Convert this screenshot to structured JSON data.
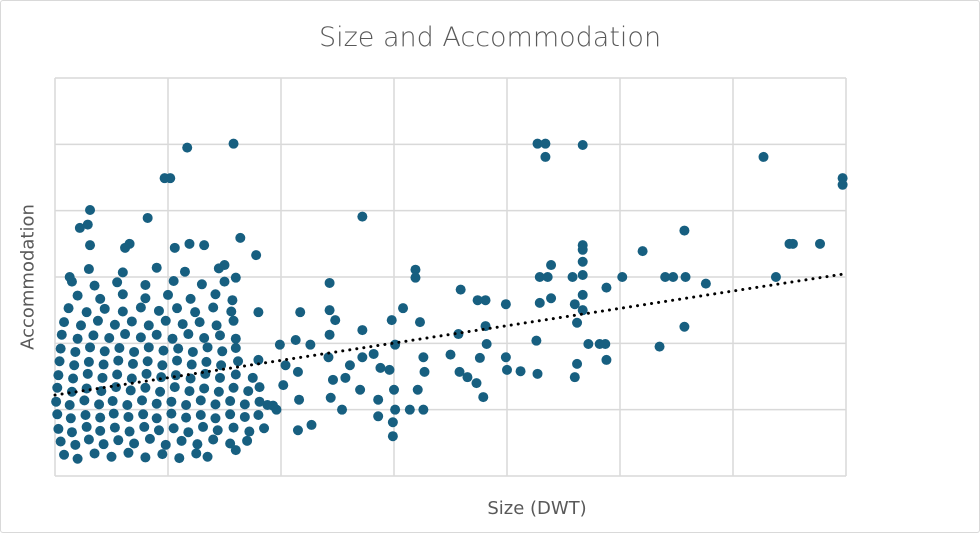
{
  "chart_data": {
    "type": "scatter",
    "title": "Size and Accommodation",
    "xlabel": "Size (DWT)",
    "ylabel": "Accommodation",
    "xlim": [
      0,
      80
    ],
    "ylim": [
      0,
      60
    ],
    "x_gridlines": 10,
    "y_gridlines": 10,
    "grid": true,
    "tick_labels_shown": false,
    "legend": "none",
    "marker_color": "#175f80",
    "gridline_color": "#d9d9d9",
    "trendline": {
      "type": "linear",
      "style": "dotted",
      "color": "#000000",
      "x": [
        0,
        70
      ],
      "y": [
        12.2,
        30.5
      ]
    },
    "points": [
      [
        11.7,
        49.5
      ],
      [
        15.8,
        50.1
      ],
      [
        9.7,
        44.9
      ],
      [
        10.2,
        44.9
      ],
      [
        27.2,
        39.1
      ],
      [
        42.7,
        50.1
      ],
      [
        43.4,
        50.1
      ],
      [
        43.4,
        48.1
      ],
      [
        46.7,
        49.9
      ],
      [
        62.7,
        48.1
      ],
      [
        69.7,
        44.9
      ],
      [
        69.7,
        43.9
      ],
      [
        67.7,
        35
      ],
      [
        65,
        35
      ],
      [
        65.3,
        35
      ],
      [
        63.8,
        30
      ],
      [
        55.7,
        37
      ],
      [
        52,
        33.9
      ],
      [
        54,
        30
      ],
      [
        54.7,
        30
      ],
      [
        55.8,
        30
      ],
      [
        57.6,
        29
      ],
      [
        55.7,
        22.5
      ],
      [
        53.5,
        19.5
      ],
      [
        50.2,
        30
      ],
      [
        48.8,
        28.4
      ],
      [
        46.7,
        34.8
      ],
      [
        46.7,
        34.1
      ],
      [
        46.7,
        32.3
      ],
      [
        46.7,
        30.3
      ],
      [
        46.7,
        27.3
      ],
      [
        46.7,
        25
      ],
      [
        47.2,
        19.9
      ],
      [
        45.8,
        30
      ],
      [
        46,
        25.9
      ],
      [
        46.2,
        23.1
      ],
      [
        46.2,
        16.9
      ],
      [
        46,
        14.9
      ],
      [
        48.2,
        19.9
      ],
      [
        48.7,
        19.9
      ],
      [
        48.8,
        17.5
      ],
      [
        43.9,
        31.8
      ],
      [
        42.9,
        30
      ],
      [
        43.6,
        30
      ],
      [
        43.9,
        26.8
      ],
      [
        42.9,
        26.1
      ],
      [
        42.6,
        20.4
      ],
      [
        42.7,
        15.4
      ],
      [
        39.9,
        25.9
      ],
      [
        39.9,
        17.9
      ],
      [
        40,
        16
      ],
      [
        41.2,
        15.8
      ],
      [
        38.1,
        26.5
      ],
      [
        37.4,
        26.5
      ],
      [
        38.1,
        22.6
      ],
      [
        38.2,
        19.9
      ],
      [
        37.6,
        17.8
      ],
      [
        37.3,
        14
      ],
      [
        37.9,
        11.9
      ],
      [
        35.9,
        28.1
      ],
      [
        35.7,
        21.4
      ],
      [
        35,
        18.3
      ],
      [
        35.8,
        15.7
      ],
      [
        36.5,
        14.9
      ],
      [
        32.3,
        23.2
      ],
      [
        32.6,
        17.9
      ],
      [
        32.7,
        15.7
      ],
      [
        32.1,
        13
      ],
      [
        32.6,
        10
      ],
      [
        31.4,
        10
      ],
      [
        30.1,
        10
      ],
      [
        29.9,
        8.1
      ],
      [
        29.9,
        6
      ],
      [
        30,
        13
      ],
      [
        29.6,
        16
      ],
      [
        30.1,
        19.8
      ],
      [
        29.8,
        23.5
      ],
      [
        30.8,
        25.3
      ],
      [
        31.9,
        31.1
      ],
      [
        31.9,
        29.9
      ],
      [
        28.2,
        18.4
      ],
      [
        28.8,
        16.3
      ],
      [
        27.2,
        22
      ],
      [
        27.2,
        17.9
      ],
      [
        26.1,
        16.7
      ],
      [
        25.7,
        14.8
      ],
      [
        27,
        13
      ],
      [
        28.6,
        11.5
      ],
      [
        28.6,
        9
      ],
      [
        25.4,
        10
      ],
      [
        24.3,
        25
      ],
      [
        24.8,
        23.5
      ],
      [
        24.3,
        21.3
      ],
      [
        24.2,
        17.9
      ],
      [
        24.6,
        14.5
      ],
      [
        24.4,
        11.8
      ],
      [
        24.3,
        29.1
      ],
      [
        22.6,
        19.8
      ],
      [
        21.7,
        24.7
      ],
      [
        21.3,
        20.5
      ],
      [
        21.5,
        15.7
      ],
      [
        20.4,
        16.7
      ],
      [
        21.6,
        11.5
      ],
      [
        21.5,
        6.9
      ],
      [
        22.7,
        7.7
      ],
      [
        19.9,
        19.8
      ],
      [
        20.2,
        13.7
      ],
      [
        19.6,
        10
      ],
      [
        18.8,
        10.7
      ],
      [
        18,
        17.5
      ],
      [
        18.1,
        13.4
      ],
      [
        18,
        24.7
      ],
      [
        17.8,
        33.3
      ],
      [
        3.1,
        40.1
      ],
      [
        2.9,
        37.9
      ],
      [
        2.2,
        37.4
      ],
      [
        3.1,
        34.8
      ],
      [
        6.6,
        35
      ],
      [
        6.2,
        34.4
      ],
      [
        10.6,
        34.4
      ],
      [
        11.9,
        35
      ],
      [
        13.2,
        34.8
      ],
      [
        16.4,
        35.9
      ],
      [
        8.2,
        38.9
      ],
      [
        1.3,
        30
      ],
      [
        15.7,
        26.5
      ],
      [
        15,
        31.8
      ],
      [
        16,
        29.9
      ],
      [
        0.8,
        3.2
      ],
      [
        2,
        2.6
      ],
      [
        3.5,
        3.4
      ],
      [
        5,
        2.9
      ],
      [
        6.5,
        3.5
      ],
      [
        8,
        2.8
      ],
      [
        9.5,
        3.3
      ],
      [
        11,
        2.7
      ],
      [
        12.5,
        3.4
      ],
      [
        13.5,
        2.9
      ],
      [
        16,
        3.9
      ],
      [
        0.5,
        5.2
      ],
      [
        1.8,
        4.7
      ],
      [
        3,
        5.5
      ],
      [
        4.3,
        4.8
      ],
      [
        5.6,
        5.4
      ],
      [
        7,
        4.9
      ],
      [
        8.4,
        5.6
      ],
      [
        9.8,
        4.7
      ],
      [
        11.2,
        5.3
      ],
      [
        12.6,
        4.8
      ],
      [
        14,
        5.5
      ],
      [
        15.5,
        4.9
      ],
      [
        17,
        5.3
      ],
      [
        0.3,
        7.1
      ],
      [
        1.5,
        6.6
      ],
      [
        2.8,
        7.4
      ],
      [
        4,
        6.8
      ],
      [
        5.3,
        7.3
      ],
      [
        6.6,
        6.7
      ],
      [
        7.9,
        7.4
      ],
      [
        9.2,
        6.9
      ],
      [
        10.5,
        7.2
      ],
      [
        11.8,
        6.6
      ],
      [
        13.1,
        7.4
      ],
      [
        14.4,
        6.9
      ],
      [
        15.8,
        7.3
      ],
      [
        17.2,
        6.7
      ],
      [
        18.5,
        7.2
      ],
      [
        0.2,
        9.3
      ],
      [
        1.4,
        8.7
      ],
      [
        2.7,
        9.2
      ],
      [
        4,
        8.8
      ],
      [
        5.2,
        9.4
      ],
      [
        6.5,
        8.9
      ],
      [
        7.8,
        9.3
      ],
      [
        9,
        8.7
      ],
      [
        10.3,
        9.4
      ],
      [
        11.6,
        8.8
      ],
      [
        12.9,
        9.2
      ],
      [
        14.2,
        8.7
      ],
      [
        15.5,
        9.3
      ],
      [
        16.8,
        8.9
      ],
      [
        18,
        9.2
      ],
      [
        0.1,
        11.2
      ],
      [
        1.3,
        10.7
      ],
      [
        2.6,
        11.4
      ],
      [
        3.9,
        10.8
      ],
      [
        5.1,
        11.3
      ],
      [
        6.4,
        10.7
      ],
      [
        7.7,
        11.4
      ],
      [
        9,
        10.9
      ],
      [
        10.3,
        11.2
      ],
      [
        11.6,
        10.7
      ],
      [
        12.9,
        11.4
      ],
      [
        14.2,
        10.8
      ],
      [
        15.5,
        11.3
      ],
      [
        16.8,
        10.8
      ],
      [
        18.1,
        11.2
      ],
      [
        19.3,
        10.6
      ],
      [
        0.2,
        13.3
      ],
      [
        1.5,
        12.7
      ],
      [
        2.8,
        13.2
      ],
      [
        4.1,
        12.8
      ],
      [
        5.4,
        13.4
      ],
      [
        6.7,
        12.9
      ],
      [
        8,
        13.3
      ],
      [
        9.3,
        12.7
      ],
      [
        10.6,
        13.4
      ],
      [
        11.9,
        12.8
      ],
      [
        13.2,
        13.2
      ],
      [
        14.5,
        12.7
      ],
      [
        15.8,
        13.3
      ],
      [
        17.1,
        12.8
      ],
      [
        0.3,
        15.2
      ],
      [
        1.6,
        14.7
      ],
      [
        2.9,
        15.4
      ],
      [
        4.2,
        14.8
      ],
      [
        5.5,
        15.3
      ],
      [
        6.8,
        14.7
      ],
      [
        8.1,
        15.4
      ],
      [
        9.4,
        14.9
      ],
      [
        10.7,
        15.2
      ],
      [
        12,
        14.7
      ],
      [
        13.3,
        15.4
      ],
      [
        14.6,
        14.8
      ],
      [
        16,
        15.3
      ],
      [
        17.5,
        14.8
      ],
      [
        0.4,
        17.3
      ],
      [
        1.7,
        16.7
      ],
      [
        3,
        17.2
      ],
      [
        4.3,
        16.8
      ],
      [
        5.6,
        17.4
      ],
      [
        6.9,
        16.9
      ],
      [
        8.2,
        17.3
      ],
      [
        9.5,
        16.7
      ],
      [
        10.8,
        17.4
      ],
      [
        12.1,
        16.8
      ],
      [
        13.4,
        17.2
      ],
      [
        14.7,
        16.7
      ],
      [
        16.2,
        17.3
      ],
      [
        0.5,
        19.2
      ],
      [
        1.8,
        18.7
      ],
      [
        3.1,
        19.4
      ],
      [
        4.4,
        18.8
      ],
      [
        5.7,
        19.3
      ],
      [
        7,
        18.7
      ],
      [
        8.3,
        19.4
      ],
      [
        9.6,
        18.9
      ],
      [
        10.9,
        19.2
      ],
      [
        12.2,
        18.7
      ],
      [
        13.5,
        19.4
      ],
      [
        14.8,
        18.8
      ],
      [
        16,
        19.3
      ],
      [
        0.6,
        21.3
      ],
      [
        2,
        20.7
      ],
      [
        3.4,
        21.2
      ],
      [
        4.8,
        20.8
      ],
      [
        6.2,
        21.4
      ],
      [
        7.6,
        20.9
      ],
      [
        9,
        21.3
      ],
      [
        10.4,
        20.7
      ],
      [
        11.8,
        21.4
      ],
      [
        13.2,
        20.8
      ],
      [
        14.6,
        21.2
      ],
      [
        16,
        20.7
      ],
      [
        0.8,
        23.2
      ],
      [
        2.3,
        22.7
      ],
      [
        3.8,
        23.4
      ],
      [
        5.3,
        22.8
      ],
      [
        6.8,
        23.3
      ],
      [
        8.3,
        22.7
      ],
      [
        9.8,
        23.4
      ],
      [
        11.3,
        22.9
      ],
      [
        12.8,
        23.2
      ],
      [
        14.3,
        22.7
      ],
      [
        15.8,
        23.4
      ],
      [
        1.2,
        25.3
      ],
      [
        2.8,
        24.7
      ],
      [
        4.4,
        25.2
      ],
      [
        6,
        24.8
      ],
      [
        7.6,
        25.4
      ],
      [
        9.2,
        24.9
      ],
      [
        10.8,
        25.3
      ],
      [
        12.4,
        24.7
      ],
      [
        14,
        25.4
      ],
      [
        15.6,
        24.8
      ],
      [
        2,
        27.2
      ],
      [
        4,
        26.7
      ],
      [
        6,
        27.4
      ],
      [
        8,
        26.8
      ],
      [
        10,
        27.3
      ],
      [
        12,
        26.7
      ],
      [
        14.2,
        27.4
      ],
      [
        1.5,
        29.3
      ],
      [
        3.5,
        28.7
      ],
      [
        5.5,
        29.2
      ],
      [
        8,
        28.8
      ],
      [
        10.5,
        29.4
      ],
      [
        13,
        28.9
      ],
      [
        15,
        29.3
      ],
      [
        3,
        31.2
      ],
      [
        6,
        30.7
      ],
      [
        9,
        31.4
      ],
      [
        11.5,
        30.8
      ],
      [
        14.5,
        31.3
      ]
    ]
  }
}
